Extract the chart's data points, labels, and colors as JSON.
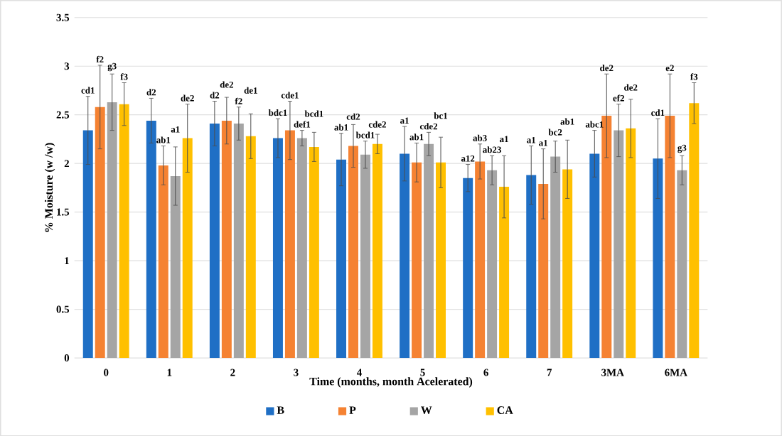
{
  "chart_data": {
    "type": "bar",
    "xlabel": "Time (months, month Acelerated)",
    "ylabel": "% Moisture (w /w)",
    "categories": [
      "0",
      "1",
      "2",
      "3",
      "4",
      "5",
      "6",
      "7",
      "3MA",
      "6MA"
    ],
    "series": [
      {
        "name": "B",
        "color": "#1f6fc5",
        "values": [
          2.34,
          2.44,
          2.41,
          2.26,
          2.04,
          2.1,
          1.85,
          1.88,
          2.1,
          2.05
        ],
        "errors": [
          0.35,
          0.23,
          0.23,
          0.2,
          0.27,
          0.28,
          0.14,
          0.3,
          0.24,
          0.41
        ]
      },
      {
        "name": "P",
        "color": "#f58232",
        "values": [
          2.58,
          1.98,
          2.44,
          2.34,
          2.18,
          2.01,
          2.02,
          1.79,
          2.49,
          2.49
        ],
        "errors": [
          0.43,
          0.2,
          0.24,
          0.3,
          0.22,
          0.2,
          0.18,
          0.36,
          0.43,
          0.43
        ]
      },
      {
        "name": "W",
        "color": "#a5a5a5",
        "values": [
          2.63,
          1.87,
          2.41,
          2.26,
          2.09,
          2.2,
          1.93,
          2.07,
          2.34,
          1.93
        ],
        "errors": [
          0.29,
          0.3,
          0.17,
          0.08,
          0.14,
          0.12,
          0.15,
          0.16,
          0.27,
          0.15
        ]
      },
      {
        "name": "CA",
        "color": "#ffc000",
        "values": [
          2.61,
          2.26,
          2.28,
          2.17,
          2.2,
          2.01,
          1.76,
          1.94,
          2.36,
          2.62
        ],
        "errors": [
          0.22,
          0.35,
          0.23,
          0.15,
          0.1,
          0.26,
          0.32,
          0.3,
          0.3,
          0.21
        ]
      }
    ],
    "ylim": [
      0,
      3.5
    ],
    "yticks": [
      0,
      0.5,
      1,
      1.5,
      2,
      2.5,
      3,
      3.5
    ],
    "grid": "y",
    "legend": "bottom",
    "annotations": [
      "cd1",
      "f2",
      "g3",
      "f3",
      "d2",
      "ab1",
      "a1",
      "de2",
      "d2",
      "de2",
      "f2",
      "de1",
      "bdc1",
      "cde1",
      "def1",
      "bcd1",
      "ab1",
      "cd2",
      "bcd1",
      "cde2",
      "a1",
      "ab1",
      "cde2",
      "bc1",
      "a12",
      "ab3",
      "ab23",
      "a1",
      "a1",
      "a1",
      "bc2",
      "ab1",
      "abc1",
      "de2",
      "ef2",
      "de2",
      "cd1",
      "e2",
      "g3",
      "f3"
    ]
  }
}
